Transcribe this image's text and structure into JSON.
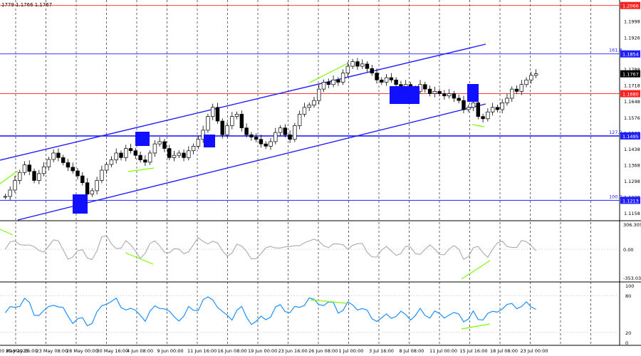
{
  "header": {
    "quote": "1779 1.1766 1.1767"
  },
  "chart_data": {
    "type": "candlestick",
    "ylim": [
      1.113,
      1.209
    ],
    "time_labels": [
      "20 May 2025",
      "20 May 16:00",
      "23 May 08:00",
      "28 May 00:00",
      "30 May 16:00",
      "4 Jun 08:00",
      "9 Jun 00:00",
      "11 Jun 16:00",
      "16 Jun 08:00",
      "19 Jun 00:00",
      "23 Jun 16:00",
      "26 Jun 08:00",
      "1 Jul 00:00",
      "3 Jul 16:00",
      "8 Jul 08:00",
      "11 Jul 00:00",
      "15 Jul 16:00",
      "18 Jul 08:00",
      "23 Jul 00:00"
    ],
    "price_ticks": [
      "1.2066",
      "1.1998",
      "1.1926",
      "1.1854",
      "1.1788",
      "1.1718",
      "1.1648",
      "1.1576",
      "1.1508",
      "1.1438",
      "1.1368",
      "1.1298",
      "1.1228",
      "1.1158"
    ],
    "levels": [
      {
        "label": "1.2066",
        "value": 1.2066,
        "color": "#ff2020"
      },
      {
        "label": "1.1854",
        "value": 1.1854,
        "color": "#2020ff",
        "fib": "161.8"
      },
      {
        "label": "1.1767",
        "value": 1.1767,
        "color": "#000000"
      },
      {
        "label": "1.1680",
        "value": 1.168,
        "color": "#ff2020"
      },
      {
        "label": "1.1495",
        "value": 1.1495,
        "color": "#2020ff",
        "fib": "127.2"
      },
      {
        "label": "1.1213",
        "value": 1.1213,
        "color": "#2020ff",
        "fib": "100.0"
      }
    ],
    "ohlc_path": [
      1.123,
      1.1258,
      1.13,
      1.1335,
      1.1368,
      1.134,
      1.13,
      1.133,
      1.136,
      1.1392,
      1.142,
      1.14,
      1.1378,
      1.1358,
      1.1342,
      1.132,
      1.129,
      1.124,
      1.1255,
      1.13,
      1.1345,
      1.137,
      1.139,
      1.142,
      1.14,
      1.144,
      1.143,
      1.141,
      1.139,
      1.138,
      1.142,
      1.146,
      1.147,
      1.144,
      1.14,
      1.141,
      1.142,
      1.14,
      1.143,
      1.145,
      1.148,
      1.152,
      1.158,
      1.162,
      1.156,
      1.15,
      1.154,
      1.158,
      1.159,
      1.153,
      1.15,
      1.149,
      1.148,
      1.146,
      1.145,
      1.147,
      1.151,
      1.153,
      1.15,
      1.148,
      1.154,
      1.159,
      1.162,
      1.163,
      1.165,
      1.17,
      1.173,
      1.172,
      1.174,
      1.173,
      1.177,
      1.18,
      1.182,
      1.18,
      1.181,
      1.179,
      1.177,
      1.174,
      1.173,
      1.175,
      1.174,
      1.172,
      1.171,
      1.172,
      1.17,
      1.169,
      1.172,
      1.17,
      1.168,
      1.169,
      1.168,
      1.167,
      1.168,
      1.166,
      1.165,
      1.161,
      1.162,
      1.164,
      1.158,
      1.157,
      1.16,
      1.162,
      1.161,
      1.164,
      1.166,
      1.17,
      1.169,
      1.172,
      1.174,
      1.176,
      1.1767
    ],
    "cci": {
      "ticks": [
        "306.3051",
        "0.00",
        "-353.035"
      ],
      "ylim": [
        -353,
        306
      ]
    },
    "rsi": {
      "ticks": [
        "100",
        "80",
        "20",
        "0"
      ],
      "ylim": [
        0,
        100
      ]
    }
  }
}
